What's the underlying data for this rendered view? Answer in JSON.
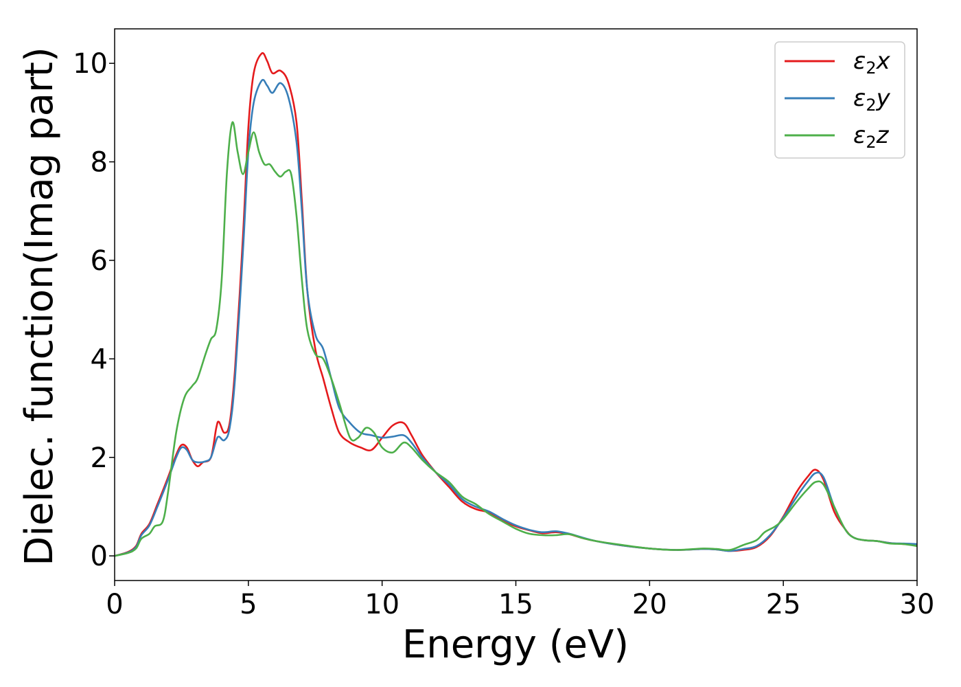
{
  "chart_data": {
    "type": "line",
    "xlabel": "Energy (eV)",
    "ylabel": "Dielec. function(Imag part)",
    "xlim": [
      0,
      30
    ],
    "ylim": [
      -0.5,
      10.7
    ],
    "xticks": [
      0,
      5,
      10,
      15,
      20,
      25,
      30
    ],
    "yticks": [
      0,
      2,
      4,
      6,
      8,
      10
    ],
    "grid": false,
    "legend_position": "top-right",
    "series": [
      {
        "name": "ε2x",
        "legend": {
          "sym": "ε",
          "sub": "2",
          "var": "x"
        },
        "color": "#e41a1c",
        "points": [
          [
            0,
            0
          ],
          [
            0.5,
            0.08
          ],
          [
            0.8,
            0.2
          ],
          [
            1.0,
            0.45
          ],
          [
            1.3,
            0.65
          ],
          [
            1.6,
            1.05
          ],
          [
            2.0,
            1.6
          ],
          [
            2.3,
            2.05
          ],
          [
            2.5,
            2.25
          ],
          [
            2.7,
            2.2
          ],
          [
            2.9,
            1.95
          ],
          [
            3.1,
            1.82
          ],
          [
            3.3,
            1.9
          ],
          [
            3.6,
            2.0
          ],
          [
            3.8,
            2.6
          ],
          [
            3.9,
            2.72
          ],
          [
            4.1,
            2.5
          ],
          [
            4.3,
            2.7
          ],
          [
            4.5,
            3.8
          ],
          [
            4.8,
            6.5
          ],
          [
            5.0,
            8.7
          ],
          [
            5.2,
            9.8
          ],
          [
            5.5,
            10.2
          ],
          [
            5.7,
            10.05
          ],
          [
            5.9,
            9.8
          ],
          [
            6.2,
            9.85
          ],
          [
            6.5,
            9.6
          ],
          [
            6.8,
            8.8
          ],
          [
            7.0,
            7.2
          ],
          [
            7.2,
            5.4
          ],
          [
            7.5,
            4.2
          ],
          [
            7.8,
            3.6
          ],
          [
            8.1,
            3.0
          ],
          [
            8.4,
            2.5
          ],
          [
            8.8,
            2.3
          ],
          [
            9.2,
            2.2
          ],
          [
            9.6,
            2.15
          ],
          [
            10.0,
            2.4
          ],
          [
            10.4,
            2.65
          ],
          [
            10.8,
            2.7
          ],
          [
            11.1,
            2.45
          ],
          [
            11.5,
            2.05
          ],
          [
            12.0,
            1.7
          ],
          [
            12.5,
            1.4
          ],
          [
            13.0,
            1.1
          ],
          [
            13.5,
            0.95
          ],
          [
            14.0,
            0.88
          ],
          [
            14.5,
            0.72
          ],
          [
            15.0,
            0.6
          ],
          [
            15.5,
            0.52
          ],
          [
            16.0,
            0.46
          ],
          [
            16.5,
            0.48
          ],
          [
            17.0,
            0.44
          ],
          [
            17.5,
            0.36
          ],
          [
            18.0,
            0.3
          ],
          [
            19.0,
            0.21
          ],
          [
            20.0,
            0.15
          ],
          [
            21.0,
            0.12
          ],
          [
            22.0,
            0.14
          ],
          [
            22.5,
            0.13
          ],
          [
            23.0,
            0.1
          ],
          [
            23.5,
            0.12
          ],
          [
            24.0,
            0.18
          ],
          [
            24.5,
            0.4
          ],
          [
            25.0,
            0.8
          ],
          [
            25.5,
            1.3
          ],
          [
            25.9,
            1.6
          ],
          [
            26.2,
            1.75
          ],
          [
            26.5,
            1.55
          ],
          [
            26.9,
            0.9
          ],
          [
            27.3,
            0.55
          ],
          [
            27.6,
            0.38
          ],
          [
            28.0,
            0.32
          ],
          [
            28.5,
            0.3
          ],
          [
            29.0,
            0.26
          ],
          [
            29.5,
            0.24
          ],
          [
            30.0,
            0.22
          ]
        ]
      },
      {
        "name": "ε2y",
        "legend": {
          "sym": "ε",
          "sub": "2",
          "var": "y"
        },
        "color": "#377eb8",
        "points": [
          [
            0,
            0
          ],
          [
            0.5,
            0.07
          ],
          [
            0.8,
            0.18
          ],
          [
            1.0,
            0.42
          ],
          [
            1.3,
            0.62
          ],
          [
            1.6,
            1.0
          ],
          [
            2.0,
            1.55
          ],
          [
            2.3,
            2.0
          ],
          [
            2.5,
            2.2
          ],
          [
            2.7,
            2.15
          ],
          [
            2.9,
            1.95
          ],
          [
            3.1,
            1.9
          ],
          [
            3.4,
            1.92
          ],
          [
            3.6,
            2.0
          ],
          [
            3.8,
            2.35
          ],
          [
            3.9,
            2.42
          ],
          [
            4.1,
            2.35
          ],
          [
            4.3,
            2.6
          ],
          [
            4.5,
            3.6
          ],
          [
            4.8,
            6.2
          ],
          [
            5.0,
            8.2
          ],
          [
            5.2,
            9.2
          ],
          [
            5.5,
            9.65
          ],
          [
            5.7,
            9.55
          ],
          [
            5.9,
            9.4
          ],
          [
            6.2,
            9.6
          ],
          [
            6.5,
            9.3
          ],
          [
            6.8,
            8.4
          ],
          [
            7.0,
            7.0
          ],
          [
            7.2,
            5.4
          ],
          [
            7.5,
            4.5
          ],
          [
            7.8,
            4.2
          ],
          [
            8.1,
            3.6
          ],
          [
            8.4,
            3.0
          ],
          [
            8.8,
            2.7
          ],
          [
            9.2,
            2.5
          ],
          [
            9.6,
            2.45
          ],
          [
            10.0,
            2.4
          ],
          [
            10.4,
            2.42
          ],
          [
            10.8,
            2.45
          ],
          [
            11.1,
            2.3
          ],
          [
            11.5,
            2.0
          ],
          [
            12.0,
            1.7
          ],
          [
            12.5,
            1.45
          ],
          [
            13.0,
            1.15
          ],
          [
            13.5,
            1.0
          ],
          [
            14.0,
            0.9
          ],
          [
            14.5,
            0.75
          ],
          [
            15.0,
            0.62
          ],
          [
            15.5,
            0.53
          ],
          [
            16.0,
            0.48
          ],
          [
            16.5,
            0.5
          ],
          [
            17.0,
            0.45
          ],
          [
            17.5,
            0.37
          ],
          [
            18.0,
            0.3
          ],
          [
            19.0,
            0.21
          ],
          [
            20.0,
            0.15
          ],
          [
            21.0,
            0.12
          ],
          [
            22.0,
            0.14
          ],
          [
            22.5,
            0.13
          ],
          [
            23.0,
            0.1
          ],
          [
            23.5,
            0.14
          ],
          [
            24.0,
            0.2
          ],
          [
            24.5,
            0.42
          ],
          [
            25.0,
            0.78
          ],
          [
            25.5,
            1.2
          ],
          [
            25.9,
            1.5
          ],
          [
            26.2,
            1.68
          ],
          [
            26.5,
            1.6
          ],
          [
            26.9,
            1.0
          ],
          [
            27.3,
            0.55
          ],
          [
            27.6,
            0.38
          ],
          [
            28.0,
            0.32
          ],
          [
            28.5,
            0.3
          ],
          [
            29.0,
            0.26
          ],
          [
            29.5,
            0.25
          ],
          [
            30.0,
            0.24
          ]
        ]
      },
      {
        "name": "ε2z",
        "legend": {
          "sym": "ε",
          "sub": "2",
          "var": "z"
        },
        "color": "#4daf4a",
        "points": [
          [
            0,
            0
          ],
          [
            0.5,
            0.06
          ],
          [
            0.8,
            0.15
          ],
          [
            1.0,
            0.35
          ],
          [
            1.3,
            0.45
          ],
          [
            1.5,
            0.6
          ],
          [
            1.8,
            0.7
          ],
          [
            2.0,
            1.3
          ],
          [
            2.3,
            2.5
          ],
          [
            2.6,
            3.2
          ],
          [
            2.9,
            3.45
          ],
          [
            3.1,
            3.6
          ],
          [
            3.4,
            4.1
          ],
          [
            3.6,
            4.4
          ],
          [
            3.8,
            4.6
          ],
          [
            4.0,
            5.6
          ],
          [
            4.2,
            7.8
          ],
          [
            4.4,
            8.8
          ],
          [
            4.6,
            8.2
          ],
          [
            4.8,
            7.75
          ],
          [
            5.0,
            8.2
          ],
          [
            5.2,
            8.6
          ],
          [
            5.4,
            8.2
          ],
          [
            5.6,
            7.95
          ],
          [
            5.8,
            7.95
          ],
          [
            6.0,
            7.8
          ],
          [
            6.2,
            7.7
          ],
          [
            6.4,
            7.8
          ],
          [
            6.6,
            7.75
          ],
          [
            6.8,
            6.9
          ],
          [
            7.0,
            5.6
          ],
          [
            7.2,
            4.6
          ],
          [
            7.5,
            4.1
          ],
          [
            7.8,
            4.0
          ],
          [
            8.1,
            3.6
          ],
          [
            8.4,
            3.1
          ],
          [
            8.8,
            2.4
          ],
          [
            9.1,
            2.4
          ],
          [
            9.4,
            2.6
          ],
          [
            9.7,
            2.5
          ],
          [
            10.0,
            2.2
          ],
          [
            10.4,
            2.1
          ],
          [
            10.8,
            2.3
          ],
          [
            11.1,
            2.2
          ],
          [
            11.5,
            1.95
          ],
          [
            12.0,
            1.7
          ],
          [
            12.5,
            1.5
          ],
          [
            13.0,
            1.2
          ],
          [
            13.5,
            1.05
          ],
          [
            14.0,
            0.85
          ],
          [
            14.5,
            0.7
          ],
          [
            15.0,
            0.55
          ],
          [
            15.5,
            0.45
          ],
          [
            16.0,
            0.42
          ],
          [
            16.5,
            0.42
          ],
          [
            17.0,
            0.44
          ],
          [
            17.5,
            0.36
          ],
          [
            18.0,
            0.3
          ],
          [
            19.0,
            0.22
          ],
          [
            20.0,
            0.15
          ],
          [
            21.0,
            0.12
          ],
          [
            22.0,
            0.15
          ],
          [
            22.5,
            0.14
          ],
          [
            23.0,
            0.12
          ],
          [
            23.5,
            0.22
          ],
          [
            24.0,
            0.32
          ],
          [
            24.3,
            0.48
          ],
          [
            24.7,
            0.6
          ],
          [
            25.0,
            0.75
          ],
          [
            25.5,
            1.1
          ],
          [
            25.9,
            1.35
          ],
          [
            26.2,
            1.5
          ],
          [
            26.5,
            1.45
          ],
          [
            26.9,
            1.0
          ],
          [
            27.3,
            0.55
          ],
          [
            27.6,
            0.38
          ],
          [
            28.0,
            0.32
          ],
          [
            28.5,
            0.3
          ],
          [
            29.0,
            0.25
          ],
          [
            29.5,
            0.24
          ],
          [
            30.0,
            0.2
          ]
        ]
      }
    ]
  }
}
